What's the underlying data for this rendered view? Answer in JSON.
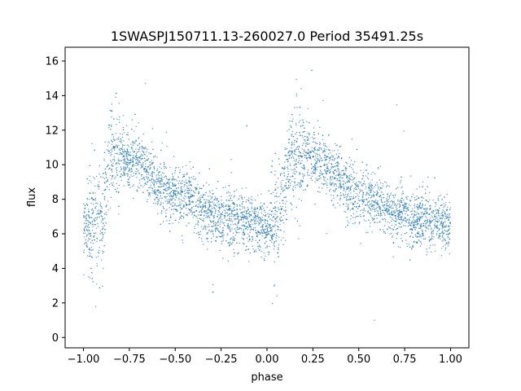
{
  "chart_data": {
    "type": "scatter",
    "title": "1SWASPJ150711.13-260027.0 Period 35491.25s",
    "xlabel": "phase",
    "ylabel": "flux",
    "xlim": [
      -1.1,
      1.1
    ],
    "ylim": [
      -0.6,
      16.8
    ],
    "xticks": [
      -1.0,
      -0.75,
      -0.5,
      -0.25,
      0.0,
      0.25,
      0.5,
      0.75,
      1.0
    ],
    "xtick_labels": [
      "−1.00",
      "−0.75",
      "−0.50",
      "−0.25",
      "0.00",
      "0.25",
      "0.50",
      "0.75",
      "1.00"
    ],
    "yticks": [
      0,
      2,
      4,
      6,
      8,
      10,
      12,
      14,
      16
    ],
    "ytick_labels": [
      "0",
      "2",
      "4",
      "6",
      "8",
      "10",
      "12",
      "14",
      "16"
    ],
    "grid": false,
    "legend": "none",
    "point_color": "#1f77b4",
    "lightcurve_model": {
      "description_of_shape": "phased light curve, repeated over two cycles",
      "phase_range": [
        -1.0,
        1.0
      ],
      "key_points": [
        {
          "phase": -1.0,
          "flux": 6.5
        },
        {
          "phase": -0.9,
          "flux": 6.6
        },
        {
          "phase": -0.85,
          "flux": 10.6
        },
        {
          "phase": -0.75,
          "flux": 10.4
        },
        {
          "phase": -0.5,
          "flux": 8.3
        },
        {
          "phase": -0.25,
          "flux": 7.0
        },
        {
          "phase": -0.1,
          "flux": 6.6
        },
        {
          "phase": 0.0,
          "flux": 6.5
        },
        {
          "phase": 0.05,
          "flux": 6.7
        },
        {
          "phase": 0.15,
          "flux": 10.6
        },
        {
          "phase": 0.25,
          "flux": 10.4
        },
        {
          "phase": 0.5,
          "flux": 8.3
        },
        {
          "phase": 0.75,
          "flux": 7.0
        },
        {
          "phase": 0.9,
          "flux": 6.6
        },
        {
          "phase": 1.0,
          "flux": 6.5
        }
      ],
      "typical_scatter": 0.8
    }
  }
}
